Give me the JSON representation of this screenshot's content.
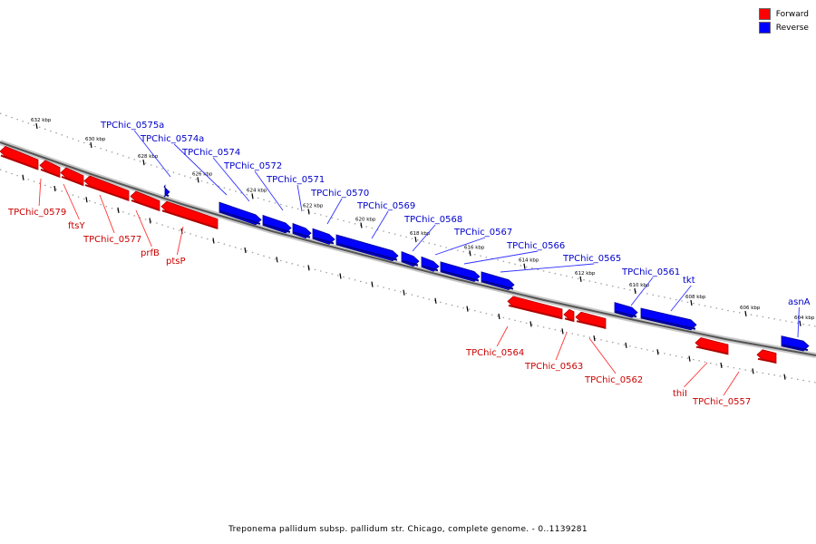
{
  "legend": {
    "forward_label": "Forward",
    "reverse_label": "Reverse",
    "forward_color": "#ff0000",
    "reverse_color": "#0000ff"
  },
  "caption": "Treponema pallidum subsp. pallidum str. Chicago, complete genome. - 0..1139281",
  "scale_labels": [
    "632 kbp",
    "630 kbp",
    "628 kbp",
    "626 kbp",
    "624 kbp",
    "622 kbp",
    "620 kbp",
    "618 kbp",
    "616 kbp",
    "614 kbp",
    "612 kbp",
    "610 kbp",
    "608 kbp",
    "606 kbp",
    "604 kbp"
  ],
  "reverse_genes": [
    "TPChic_0575a",
    "TPChic_0574a",
    "TPChic_0574",
    "TPChic_0572",
    "TPChic_0571",
    "TPChic_0570",
    "TPChic_0569",
    "TPChic_0568",
    "TPChic_0567",
    "TPChic_0566",
    "TPChic_0565",
    "TPChic_0561",
    "tkt",
    "asnA"
  ],
  "forward_genes": [
    "TPChic_0579",
    "ftsY",
    "TPChic_0577",
    "prfB",
    "ptsP",
    "TPChic_0564",
    "TPChic_0563",
    "TPChic_0562",
    "thiI",
    "TPChic_0557"
  ]
}
